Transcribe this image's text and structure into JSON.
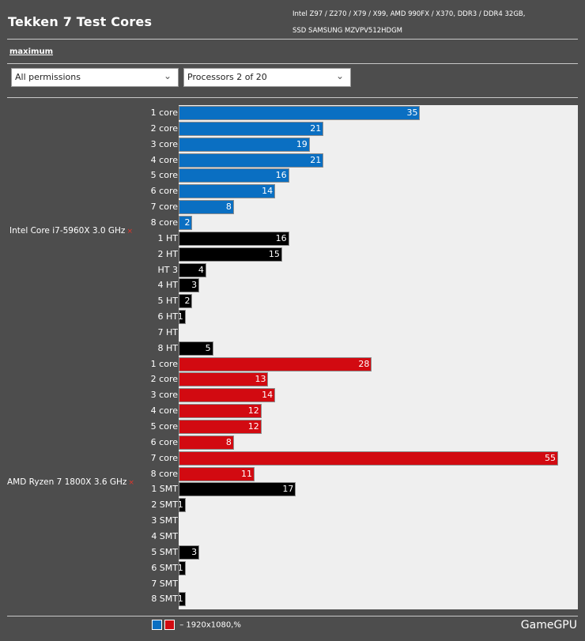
{
  "header": {
    "title": "Tekken 7 Test Cores",
    "spec_line1": "Intel Z97 / Z270 / X79 / X99, AMD 990FX / X370, DDR3 / DDR4 32GB,",
    "spec_line2": "SSD SAMSUNG MZVPV512HDGM"
  },
  "mode_link": "maximum",
  "filters": {
    "permissions": "All permissions",
    "processors": "Processors 2 of 20"
  },
  "legend": {
    "text": "– 1920x1080,%"
  },
  "brand": "GameGPU",
  "chart_data": {
    "type": "bar",
    "orientation": "horizontal",
    "groups": [
      "Intel Core i7-5960X 3.0 GHz",
      "AMD Ryzen 7 1800X 3.6 GHz"
    ],
    "group_marker": "×",
    "xlim": [
      0,
      55
    ],
    "grid": false,
    "bars": [
      {
        "group": 0,
        "label": "1 core",
        "value": 35,
        "color": "#0a6fc2"
      },
      {
        "group": 0,
        "label": "2 core",
        "value": 21,
        "color": "#0a6fc2"
      },
      {
        "group": 0,
        "label": "3 core",
        "value": 19,
        "color": "#0a6fc2"
      },
      {
        "group": 0,
        "label": "4 core",
        "value": 21,
        "color": "#0a6fc2"
      },
      {
        "group": 0,
        "label": "5 core",
        "value": 16,
        "color": "#0a6fc2"
      },
      {
        "group": 0,
        "label": "6 core",
        "value": 14,
        "color": "#0a6fc2"
      },
      {
        "group": 0,
        "label": "7 core",
        "value": 8,
        "color": "#0a6fc2"
      },
      {
        "group": 0,
        "label": "8 core",
        "value": 2,
        "color": "#0a6fc2"
      },
      {
        "group": 0,
        "label": "1 HT",
        "value": 16,
        "color": "#000000"
      },
      {
        "group": 0,
        "label": "2 HT",
        "value": 15,
        "color": "#000000"
      },
      {
        "group": 0,
        "label": "HT 3",
        "value": 4,
        "color": "#000000"
      },
      {
        "group": 0,
        "label": "4 HT",
        "value": 3,
        "color": "#000000"
      },
      {
        "group": 0,
        "label": "5 HT",
        "value": 2,
        "color": "#000000"
      },
      {
        "group": 0,
        "label": "6 HT",
        "value": 1,
        "color": "#000000"
      },
      {
        "group": 0,
        "label": "7 HT",
        "value": 0,
        "color": "#000000"
      },
      {
        "group": 0,
        "label": "8 HT",
        "value": 5,
        "color": "#000000"
      },
      {
        "group": 1,
        "label": "1 core",
        "value": 28,
        "color": "#d20a11"
      },
      {
        "group": 1,
        "label": "2 core",
        "value": 13,
        "color": "#d20a11"
      },
      {
        "group": 1,
        "label": "3 core",
        "value": 14,
        "color": "#d20a11"
      },
      {
        "group": 1,
        "label": "4 core",
        "value": 12,
        "color": "#d20a11"
      },
      {
        "group": 1,
        "label": "5 core",
        "value": 12,
        "color": "#d20a11"
      },
      {
        "group": 1,
        "label": "6 core",
        "value": 8,
        "color": "#d20a11"
      },
      {
        "group": 1,
        "label": "7 core",
        "value": 55,
        "color": "#d20a11"
      },
      {
        "group": 1,
        "label": "8 core",
        "value": 11,
        "color": "#d20a11"
      },
      {
        "group": 1,
        "label": "1 SMT",
        "value": 17,
        "color": "#000000"
      },
      {
        "group": 1,
        "label": "2 SMT",
        "value": 1,
        "color": "#000000"
      },
      {
        "group": 1,
        "label": "3 SMT",
        "value": 0,
        "color": "#000000"
      },
      {
        "group": 1,
        "label": "4 SMT",
        "value": 0,
        "color": "#000000"
      },
      {
        "group": 1,
        "label": "5 SMT",
        "value": 3,
        "color": "#000000"
      },
      {
        "group": 1,
        "label": "6 SMT",
        "value": 1,
        "color": "#000000"
      },
      {
        "group": 1,
        "label": "7 SMT",
        "value": 0,
        "color": "#000000"
      },
      {
        "group": 1,
        "label": "8 SMT",
        "value": 1,
        "color": "#000000"
      }
    ],
    "legend_colors": [
      "#0a6fc2",
      "#d20a11"
    ]
  }
}
